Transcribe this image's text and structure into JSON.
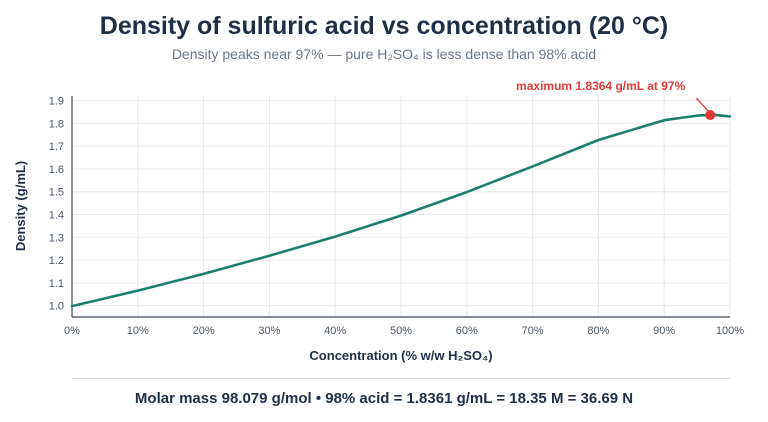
{
  "chart_data": {
    "type": "line",
    "title": "Density of sulfuric acid vs concentration (20 °C)",
    "subtitle": "Density peaks near 97% — pure H₂SO₄ is less dense than 98% acid",
    "xlabel": "Concentration (% w/w H₂SO₄)",
    "ylabel": "Density (g/mL)",
    "xlim": [
      0,
      100
    ],
    "ylim": [
      0.95,
      1.92
    ],
    "xticks": [
      0,
      10,
      20,
      30,
      40,
      50,
      60,
      70,
      80,
      90,
      100
    ],
    "xtick_labels": [
      "0%",
      "10%",
      "20%",
      "30%",
      "40%",
      "50%",
      "60%",
      "70%",
      "80%",
      "90%",
      "100%"
    ],
    "yticks": [
      1.0,
      1.1,
      1.2,
      1.3,
      1.4,
      1.5,
      1.6,
      1.7,
      1.8,
      1.9
    ],
    "ytick_labels": [
      "1.0",
      "1.1",
      "1.2",
      "1.3",
      "1.4",
      "1.5",
      "1.6",
      "1.7",
      "1.8",
      "1.9"
    ],
    "grid": true,
    "series": [
      {
        "color": "#1b7f6e",
        "x": [
          0,
          10,
          20,
          30,
          40,
          50,
          60,
          70,
          80,
          90,
          95,
          97,
          98,
          100
        ],
        "y": [
          0.998,
          1.066,
          1.139,
          1.219,
          1.303,
          1.395,
          1.498,
          1.611,
          1.727,
          1.814,
          1.834,
          1.8364,
          1.8361,
          1.83
        ]
      }
    ],
    "annotation": {
      "text": "maximum 1.8364 g/mL at 97%",
      "x": 97,
      "y": 1.8364,
      "color": "#e53935"
    }
  },
  "footer": "Molar mass 98.079 g/mol  •  98% acid = 1.8361 g/mL = 18.35 M = 36.69 N"
}
